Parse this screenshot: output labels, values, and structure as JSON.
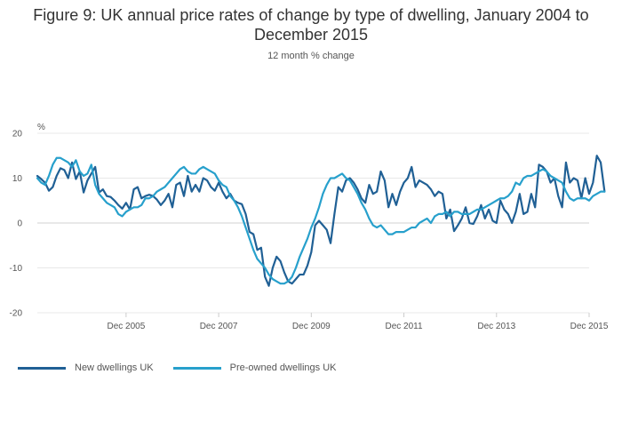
{
  "chart_data": {
    "type": "line",
    "title": "Figure 9: UK annual price rates of change by type of dwelling, January 2004 to December 2015",
    "subtitle": "12 month % change",
    "ylabel": "%",
    "xlabel": "",
    "ylim": [
      -20,
      20
    ],
    "yticks": [
      20,
      10,
      0,
      -10,
      -20
    ],
    "xlim": [
      0,
      143
    ],
    "xticks": [
      {
        "label": "Dec 2005",
        "index": 23
      },
      {
        "label": "Dec 2007",
        "index": 47
      },
      {
        "label": "Dec 2009",
        "index": 71
      },
      {
        "label": "Dec 2011",
        "index": 95
      },
      {
        "label": "Dec 2013",
        "index": 119
      },
      {
        "label": "Dec 2015",
        "index": 143
      }
    ],
    "grid": true,
    "legend_position": "bottom-left",
    "x_start": "Jan 2004",
    "x_end": "Dec 2015",
    "series": [
      {
        "name": "New dwellings UK",
        "color": "#206095",
        "values": [
          10.5,
          9.8,
          9.0,
          7.2,
          8.0,
          10.5,
          12.2,
          11.8,
          10.0,
          13.5,
          9.8,
          11.5,
          6.8,
          9.5,
          11.0,
          12.5,
          6.8,
          7.5,
          6.0,
          5.8,
          5.0,
          4.0,
          3.2,
          4.5,
          3.0,
          7.5,
          8.0,
          5.5,
          6.0,
          6.3,
          6.0,
          5.2,
          4.0,
          5.0,
          6.5,
          3.5,
          8.5,
          9.0,
          6.0,
          10.5,
          7.0,
          8.5,
          7.0,
          10.0,
          9.5,
          8.0,
          7.2,
          9.0,
          7.0,
          5.5,
          6.5,
          5.0,
          4.5,
          4.2,
          2.0,
          -2.0,
          -2.5,
          -6.0,
          -5.5,
          -12.0,
          -14.0,
          -10.0,
          -7.5,
          -8.5,
          -11.0,
          -13.0,
          -13.5,
          -12.5,
          -11.5,
          -11.5,
          -9.5,
          -6.5,
          -0.5,
          0.5,
          -0.5,
          -1.5,
          -4.5,
          2.0,
          8.0,
          7.0,
          9.5,
          10.0,
          9.0,
          7.5,
          5.5,
          4.5,
          8.5,
          6.5,
          7.0,
          11.5,
          9.5,
          3.5,
          6.5,
          4.0,
          7.0,
          9.0,
          10.0,
          12.5,
          8.0,
          9.5,
          9.0,
          8.5,
          7.5,
          6.0,
          7.0,
          6.5,
          1.0,
          3.0,
          -1.8,
          -0.5,
          1.0,
          3.5,
          0.0,
          -0.2,
          1.5,
          4.0,
          1.0,
          3.0,
          0.5,
          0.0,
          5.0,
          3.0,
          2.0,
          0.0,
          2.5,
          6.5,
          2.0,
          2.5,
          6.5,
          3.5,
          13.0,
          12.5,
          11.5,
          9.0,
          10.0,
          6.0,
          3.5,
          13.5,
          9.0,
          10.0,
          9.5,
          5.5,
          10.0,
          6.5,
          9.0,
          15.0,
          13.5,
          7.0
        ]
      },
      {
        "name": "Pre-owned dwellings UK",
        "color": "#27a0cc",
        "values": [
          10.0,
          9.0,
          8.5,
          10.5,
          13.0,
          14.5,
          14.5,
          14.0,
          13.5,
          12.5,
          14.0,
          11.5,
          10.5,
          11.0,
          13.0,
          8.5,
          6.5,
          5.5,
          4.5,
          4.0,
          3.5,
          2.0,
          1.5,
          2.5,
          3.0,
          3.5,
          3.5,
          4.0,
          5.5,
          5.5,
          6.0,
          7.0,
          7.5,
          8.0,
          9.0,
          10.0,
          11.0,
          12.0,
          12.5,
          11.5,
          11.0,
          11.0,
          12.0,
          12.5,
          12.0,
          11.5,
          11.0,
          9.5,
          8.5,
          8.0,
          6.0,
          5.0,
          3.5,
          1.5,
          -1.0,
          -3.5,
          -6.0,
          -8.0,
          -9.0,
          -10.0,
          -11.5,
          -12.5,
          -13.0,
          -13.5,
          -13.5,
          -13.0,
          -12.0,
          -10.0,
          -7.5,
          -5.5,
          -3.5,
          -1.0,
          1.0,
          3.5,
          6.5,
          8.5,
          10.0,
          10.0,
          10.5,
          11.0,
          10.0,
          9.5,
          8.0,
          6.5,
          4.5,
          3.0,
          1.0,
          -0.5,
          -1.0,
          -0.5,
          -1.5,
          -2.5,
          -2.5,
          -2.0,
          -2.0,
          -2.0,
          -1.5,
          -1.0,
          -1.0,
          0.0,
          0.5,
          1.0,
          0.0,
          1.5,
          2.0,
          2.0,
          2.5,
          1.5,
          2.5,
          2.5,
          2.0,
          2.0,
          2.0,
          2.5,
          3.0,
          3.0,
          3.5,
          4.0,
          4.5,
          5.0,
          5.5,
          5.5,
          6.0,
          7.0,
          9.0,
          8.5,
          10.0,
          10.5,
          10.5,
          11.0,
          11.5,
          12.0,
          11.5,
          10.5,
          10.0,
          9.5,
          9.0,
          7.0,
          5.5,
          5.0,
          5.5,
          5.5,
          5.5,
          5.0,
          6.0,
          6.5,
          7.0,
          7.0
        ]
      }
    ]
  }
}
